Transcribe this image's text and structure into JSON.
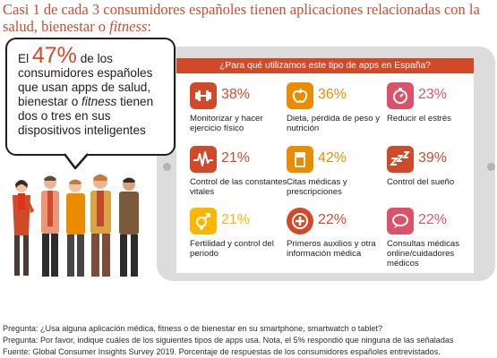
{
  "headline": {
    "text": "Casi 1 de cada 3 consumidores españoles tienen aplicaciones relacionadas con la salud, bienestar o ",
    "emphasis": "fitness",
    "tail": ":"
  },
  "bubble": {
    "pre": "El ",
    "stat": "47%",
    "post": " de los consumidores españoles que usan apps de salud, bienestar o ",
    "emphasis": "fitness",
    "tail": " tienen dos o tres en sus dispositivos inteligentes"
  },
  "tablet": {
    "question": "¿Para qué utilizamos este tipo de apps en España?"
  },
  "tiles": [
    {
      "pct": "38%",
      "label": "Monitorizar y hacer ejercicio físico",
      "icon": "dumbbell-icon",
      "color": "#d04a2a",
      "text_color": "#d04a2a"
    },
    {
      "pct": "36%",
      "label": "Dieta, pérdida de peso y nutrición",
      "icon": "apple-icon",
      "color": "#eb8c00",
      "text_color": "#eb8c00"
    },
    {
      "pct": "23%",
      "label": "Reducir el estrés",
      "icon": "stopwatch-icon",
      "color": "#db536a",
      "text_color": "#db536a"
    },
    {
      "pct": "21%",
      "label": "Control de las constantes vitales",
      "icon": "heartbeat-icon",
      "color": "#d04a2a",
      "text_color": "#d04a2a"
    },
    {
      "pct": "42%",
      "label": "Citas médicas y prescripciones",
      "icon": "pill-bottle-icon",
      "color": "#eb8c00",
      "text_color": "#eb8c00"
    },
    {
      "pct": "39%",
      "label": "Control del sueño",
      "icon": "sleep-icon",
      "color": "#d04a2a",
      "text_color": "#d04a2a"
    },
    {
      "pct": "21%",
      "label": "Fertilidad y control del periodo",
      "icon": "gender-icon",
      "color": "#ffb600",
      "text_color": "#ffb600"
    },
    {
      "pct": "22%",
      "label": "Primeros auxilios y otra información médica",
      "icon": "first-aid-icon",
      "color": "#d04a2a",
      "text_color": "#d04a2a"
    },
    {
      "pct": "22%",
      "label": "Consultas médicas online/cuidadores médicos",
      "icon": "chat-icon",
      "color": "#db536a",
      "text_color": "#db536a"
    }
  ],
  "footnotes": [
    "Pregunta: ¿Usa alguna aplicación médica, fitness o de bienestar en su smartphone, smartwatch o tablet?",
    "Pregunta: Por favor, indique cuáles de los siguientes tipos de apps usa. Nota, el 5% respondió que ninguna de las señaladas",
    "Fuente: Global Consumer Insights Survey 2019. Porcentaje de respuestas de los consumidores españoles entrevistados."
  ]
}
